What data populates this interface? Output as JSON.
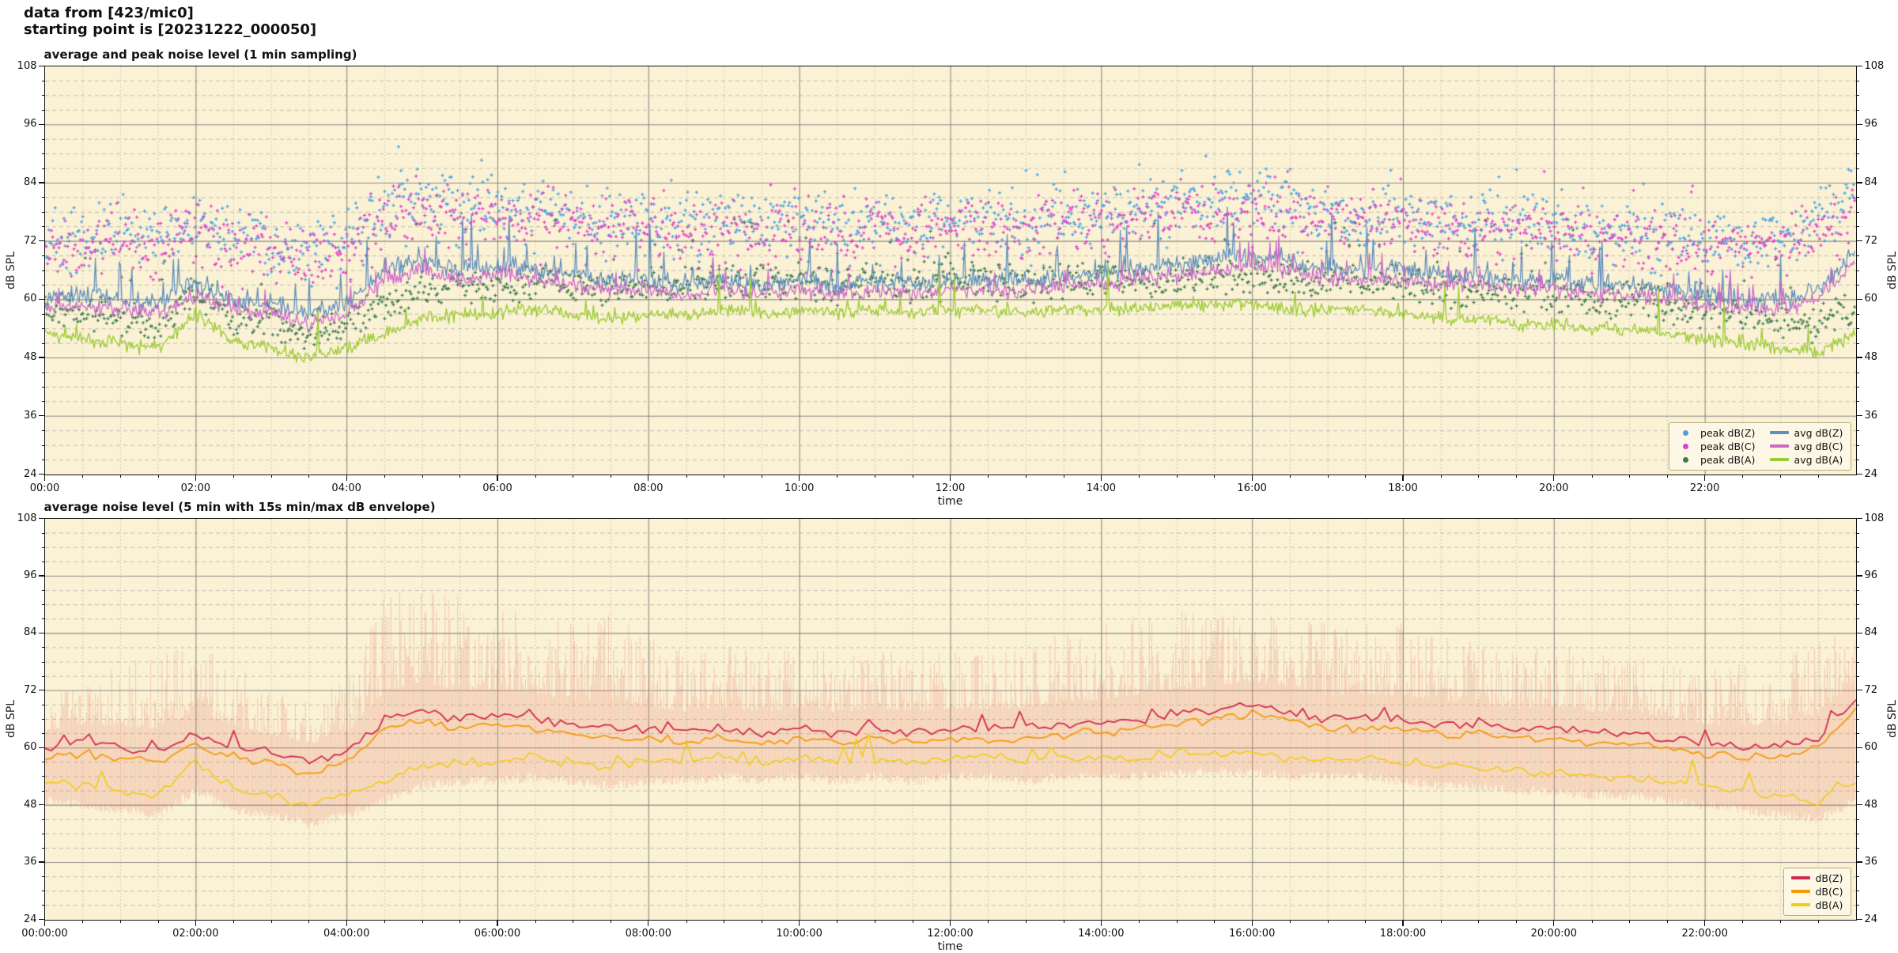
{
  "header": {
    "line1": "data from [423/mic0]",
    "line2": "starting point is [20231222_000050]"
  },
  "layout_colors": {
    "plot_background": "#fbf2d5",
    "grid_major": "#9b9b9b",
    "grid_minor": "#a8a8a8",
    "axis_spine": "#111111"
  },
  "chart_data": [
    {
      "type": "line",
      "title": "average and peak noise level (1 min sampling)",
      "xlabel": "time",
      "ylabel": "dB SPL",
      "ylabel_right": "dB SPL",
      "ylim": [
        24,
        108
      ],
      "yticks": [
        24,
        36,
        48,
        60,
        72,
        84,
        96,
        108
      ],
      "x_hours_range": [
        0,
        24
      ],
      "sampling": "1 min",
      "grid": "major solid every 2 h / 12 dB, minor dashed every 30 min / 3 dB",
      "legend_position": "lower right",
      "xtick_hours": [
        0,
        2,
        4,
        6,
        8,
        10,
        12,
        14,
        16,
        18,
        20,
        22
      ],
      "xtick_labels": [
        "00:00",
        "02:00",
        "04:00",
        "06:00",
        "08:00",
        "10:00",
        "12:00",
        "14:00",
        "16:00",
        "18:00",
        "20:00",
        "22:00"
      ],
      "sample_hours": [
        0,
        0.5,
        1,
        1.5,
        2,
        2.5,
        3,
        3.5,
        4,
        4.5,
        5,
        5.5,
        6,
        6.5,
        7,
        7.5,
        8,
        8.5,
        9,
        9.5,
        10,
        10.5,
        11,
        11.5,
        12,
        12.5,
        13,
        13.5,
        14,
        14.5,
        15,
        15.5,
        16,
        16.5,
        17,
        17.5,
        18,
        18.5,
        19,
        19.5,
        20,
        20.5,
        21,
        21.5,
        22,
        22.5,
        23,
        23.5,
        24
      ],
      "envelope_max_hint": [
        72,
        74,
        78,
        80,
        82,
        78,
        72,
        70,
        75,
        92,
        94,
        92,
        90,
        88,
        86,
        88,
        84,
        80,
        82,
        80,
        82,
        80,
        80,
        82,
        80,
        80,
        82,
        84,
        86,
        88,
        90,
        88,
        90,
        88,
        86,
        88,
        86,
        84,
        82,
        80,
        82,
        80,
        80,
        78,
        76,
        78,
        80,
        82,
        88
      ],
      "series": [
        {
          "name": "peak dB(Z)",
          "plot": "scatter",
          "marker": "plus",
          "color": "#4aa0e0",
          "spread_db": 7,
          "values": [
            72,
            73,
            74,
            74,
            76,
            74,
            72,
            70,
            73,
            80,
            82,
            80,
            80,
            79,
            78,
            77,
            77,
            76,
            77,
            76,
            77,
            76,
            77,
            76,
            77,
            77,
            77,
            78,
            78,
            79,
            80,
            80,
            81,
            80,
            78,
            78,
            78,
            77,
            77,
            76,
            76,
            75,
            75,
            74,
            73,
            73,
            74,
            76,
            82
          ]
        },
        {
          "name": "peak dB(C)",
          "plot": "scatter",
          "marker": "plus",
          "color": "#e03fc8",
          "spread_db": 7,
          "values": [
            70,
            71,
            72,
            72,
            74,
            72,
            70,
            68,
            71,
            78,
            80,
            78,
            78,
            77,
            76,
            75,
            75,
            74,
            75,
            74,
            75,
            74,
            75,
            74,
            75,
            75,
            75,
            76,
            76,
            77,
            78,
            78,
            79,
            78,
            76,
            76,
            76,
            75,
            75,
            74,
            74,
            73,
            73,
            72,
            71,
            71,
            72,
            74,
            80
          ]
        },
        {
          "name": "peak dB(A)",
          "plot": "scatter",
          "marker": "plus",
          "color": "#3c7b4f",
          "spread_db": 4.5,
          "values": [
            58,
            57,
            56,
            55,
            62,
            56,
            55,
            53,
            55,
            59,
            62,
            63,
            63,
            64,
            63,
            62,
            63,
            63,
            64,
            63,
            64,
            63,
            64,
            63,
            64,
            64,
            63,
            64,
            64,
            64,
            65,
            65,
            65,
            64,
            64,
            64,
            63,
            62,
            62,
            61,
            61,
            60,
            60,
            59,
            58,
            57,
            56,
            55,
            59
          ]
        },
        {
          "name": "avg dB(Z)",
          "plot": "line",
          "color": "#5d8ebd",
          "values": [
            60,
            61,
            60,
            59,
            63,
            60,
            59,
            57,
            59,
            66,
            68,
            66,
            67,
            66,
            65,
            64,
            64,
            63,
            64,
            63,
            64,
            63,
            64,
            63,
            64,
            64,
            64,
            65,
            65,
            66,
            67,
            68,
            69,
            68,
            66,
            66,
            66,
            65,
            65,
            64,
            64,
            63,
            63,
            62,
            61,
            60,
            60,
            62,
            70
          ]
        },
        {
          "name": "avg dB(C)",
          "plot": "line",
          "color": "#cd68cb",
          "values": [
            58,
            59,
            58,
            57,
            61,
            58,
            57,
            55,
            57,
            64,
            66,
            64,
            65,
            64,
            63,
            62,
            62,
            61,
            62,
            61,
            62,
            61,
            62,
            61,
            62,
            62,
            62,
            63,
            63,
            64,
            65,
            66,
            67,
            66,
            64,
            64,
            64,
            63,
            63,
            62,
            62,
            61,
            61,
            60,
            59,
            58,
            58,
            60,
            68
          ]
        },
        {
          "name": "avg dB(A)",
          "plot": "line",
          "color": "#9dcb37",
          "values": [
            53,
            52,
            51,
            50,
            57,
            51,
            50,
            48,
            50,
            53,
            56,
            57,
            57,
            58,
            57,
            56,
            57,
            57,
            58,
            57,
            58,
            57,
            58,
            57,
            58,
            58,
            57,
            58,
            58,
            58,
            59,
            59,
            59,
            58,
            58,
            58,
            57,
            56,
            56,
            55,
            55,
            54,
            54,
            53,
            52,
            51,
            50,
            49,
            53
          ]
        }
      ]
    },
    {
      "type": "line",
      "title": "average noise level (5 min with 15s min/max dB envelope)",
      "xlabel": "time",
      "ylabel": "dB SPL",
      "ylabel_right": "dB SPL",
      "ylim": [
        24,
        108
      ],
      "yticks": [
        24,
        36,
        48,
        60,
        72,
        84,
        96,
        108
      ],
      "x_hours_range": [
        0,
        24
      ],
      "sampling": "5 min average, 15 s min/max envelope",
      "grid": "major solid every 2 h / 12 dB, minor dashed every 30 min / 3 dB",
      "legend_position": "lower right",
      "xtick_hours": [
        0,
        2,
        4,
        6,
        8,
        10,
        12,
        14,
        16,
        18,
        20,
        22
      ],
      "xtick_labels": [
        "00:00:00",
        "02:00:00",
        "04:00:00",
        "06:00:00",
        "08:00:00",
        "10:00:00",
        "12:00:00",
        "14:00:00",
        "16:00:00",
        "18:00:00",
        "20:00:00",
        "22:00:00"
      ],
      "sample_hours": [
        0,
        0.5,
        1,
        1.5,
        2,
        2.5,
        3,
        3.5,
        4,
        4.5,
        5,
        5.5,
        6,
        6.5,
        7,
        7.5,
        8,
        8.5,
        9,
        9.5,
        10,
        10.5,
        11,
        11.5,
        12,
        12.5,
        13,
        13.5,
        14,
        14.5,
        15,
        15.5,
        16,
        16.5,
        17,
        17.5,
        18,
        18.5,
        19,
        19.5,
        20,
        20.5,
        21,
        21.5,
        22,
        22.5,
        23,
        23.5,
        24
      ],
      "envelope": {
        "name": "15s min/max envelope",
        "color": "#e3786d",
        "alpha": 0.32,
        "max_values": [
          72,
          74,
          78,
          80,
          82,
          78,
          72,
          70,
          75,
          92,
          94,
          92,
          90,
          88,
          86,
          88,
          84,
          80,
          82,
          80,
          82,
          80,
          80,
          82,
          80,
          80,
          82,
          84,
          86,
          88,
          90,
          88,
          90,
          88,
          86,
          88,
          86,
          84,
          82,
          80,
          82,
          80,
          80,
          78,
          76,
          78,
          80,
          82,
          88
        ],
        "min_values": [
          50,
          49,
          48,
          47,
          52,
          48,
          47,
          45,
          47,
          50,
          53,
          54,
          54,
          55,
          54,
          53,
          54,
          54,
          55,
          54,
          55,
          54,
          55,
          54,
          55,
          55,
          54,
          55,
          55,
          55,
          56,
          56,
          56,
          55,
          55,
          55,
          54,
          53,
          53,
          52,
          52,
          51,
          51,
          50,
          49,
          48,
          47,
          46,
          50
        ]
      },
      "series": [
        {
          "name": "dB(Z)",
          "plot": "line",
          "color": "#d22a50",
          "values": [
            60,
            61,
            60,
            59,
            63,
            60,
            59,
            57,
            59,
            66,
            68,
            66,
            67,
            66,
            65,
            64,
            64,
            63,
            64,
            63,
            64,
            63,
            64,
            63,
            64,
            64,
            64,
            65,
            65,
            66,
            67,
            68,
            69,
            68,
            66,
            66,
            66,
            65,
            65,
            64,
            64,
            63,
            63,
            62,
            61,
            60,
            60,
            62,
            70
          ]
        },
        {
          "name": "dB(C)",
          "plot": "line",
          "color": "#f49a0b",
          "values": [
            58,
            59,
            58,
            57,
            61,
            58,
            57,
            55,
            57,
            64,
            66,
            64,
            65,
            64,
            63,
            62,
            62,
            61,
            62,
            61,
            62,
            61,
            62,
            61,
            62,
            62,
            62,
            63,
            63,
            64,
            65,
            66,
            67,
            66,
            64,
            64,
            64,
            63,
            63,
            62,
            62,
            61,
            61,
            60,
            59,
            58,
            58,
            60,
            68
          ]
        },
        {
          "name": "dB(A)",
          "plot": "line",
          "color": "#eecd15",
          "values": [
            53,
            52,
            51,
            50,
            57,
            51,
            50,
            48,
            50,
            53,
            56,
            57,
            57,
            58,
            57,
            56,
            57,
            57,
            58,
            57,
            58,
            57,
            58,
            57,
            58,
            58,
            57,
            58,
            58,
            58,
            59,
            59,
            59,
            58,
            58,
            58,
            57,
            56,
            56,
            55,
            55,
            54,
            54,
            53,
            52,
            51,
            50,
            49,
            53
          ]
        }
      ]
    }
  ]
}
